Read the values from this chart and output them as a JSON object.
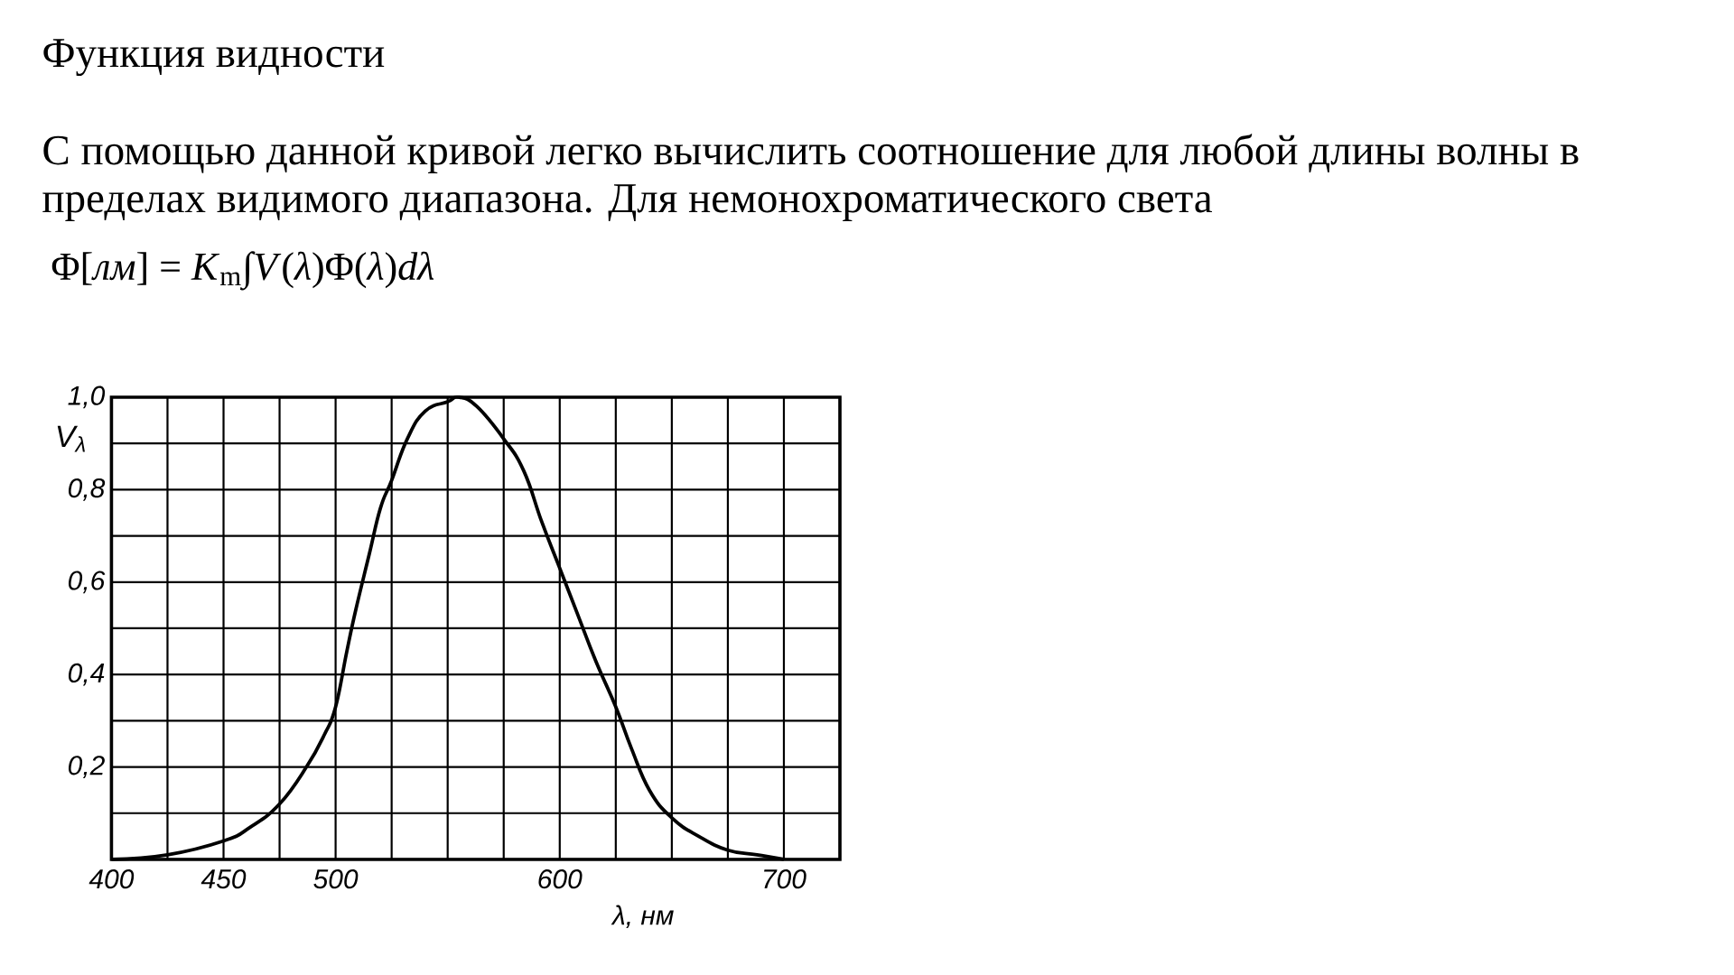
{
  "chart_data": {
    "type": "line",
    "title": "Функция видности",
    "subtitle": "С помощью данной кривой легко вычислить соотношение для любой длины волны в пределах видимого диапазона. Для немонохроматического света",
    "annotations": [
      "Φ[*лм*] = *K*$_{m}$∫*V*(*λ*)Φ(*λ*)*dλ*"
    ],
    "xlabel": "λ, нм",
    "ylabel": "V$_{λ}$",
    "x": [
      400,
      425,
      450,
      462,
      475,
      487,
      495,
      500,
      505,
      509,
      515,
      520,
      525,
      532,
      540,
      550,
      555,
      563,
      575,
      584,
      592,
      600,
      608,
      616,
      625,
      632,
      640,
      650,
      662,
      675,
      688,
      700
    ],
    "series": [
      {
        "color": "#000000",
        "values": [
          0.0,
          0.01,
          0.04,
          0.07,
          0.12,
          0.2,
          0.27,
          0.33,
          0.45,
          0.54,
          0.66,
          0.76,
          0.82,
          0.91,
          0.97,
          0.99,
          1.0,
          0.98,
          0.91,
          0.84,
          0.73,
          0.63,
          0.53,
          0.43,
          0.33,
          0.24,
          0.15,
          0.09,
          0.05,
          0.02,
          0.01,
          0.0
        ]
      }
    ],
    "xlim": [
      400,
      725
    ],
    "ylim": [
      0,
      1
    ],
    "xticks": [
      400,
      {
        "value": 425,
        "label": null
      },
      450,
      {
        "value": 475,
        "label": null
      },
      500,
      {
        "value": 525,
        "label": null
      },
      {
        "value": 550,
        "label": null
      },
      {
        "value": 575,
        "label": null
      },
      600,
      {
        "value": 625,
        "label": null
      },
      {
        "value": 650,
        "label": null
      },
      {
        "value": 675,
        "label": null
      },
      700,
      {
        "value": 725,
        "label": null
      }
    ],
    "yticks": [
      {
        "value": 0,
        "label": null
      },
      {
        "value": 0.1,
        "label": null
      },
      {
        "value": 0.2,
        "label": "0,2"
      },
      {
        "value": 0.3,
        "label": null
      },
      {
        "value": 0.4,
        "label": "0,4"
      },
      {
        "value": 0.5,
        "label": null
      },
      {
        "value": 0.6,
        "label": "0,6"
      },
      {
        "value": 0.7,
        "label": null
      },
      {
        "value": 0.8,
        "label": "0,8"
      },
      {
        "value": 0.9,
        "label": null
      },
      {
        "value": 1.0,
        "label": "1,0"
      }
    ],
    "grid": true,
    "line_style": "solid"
  }
}
